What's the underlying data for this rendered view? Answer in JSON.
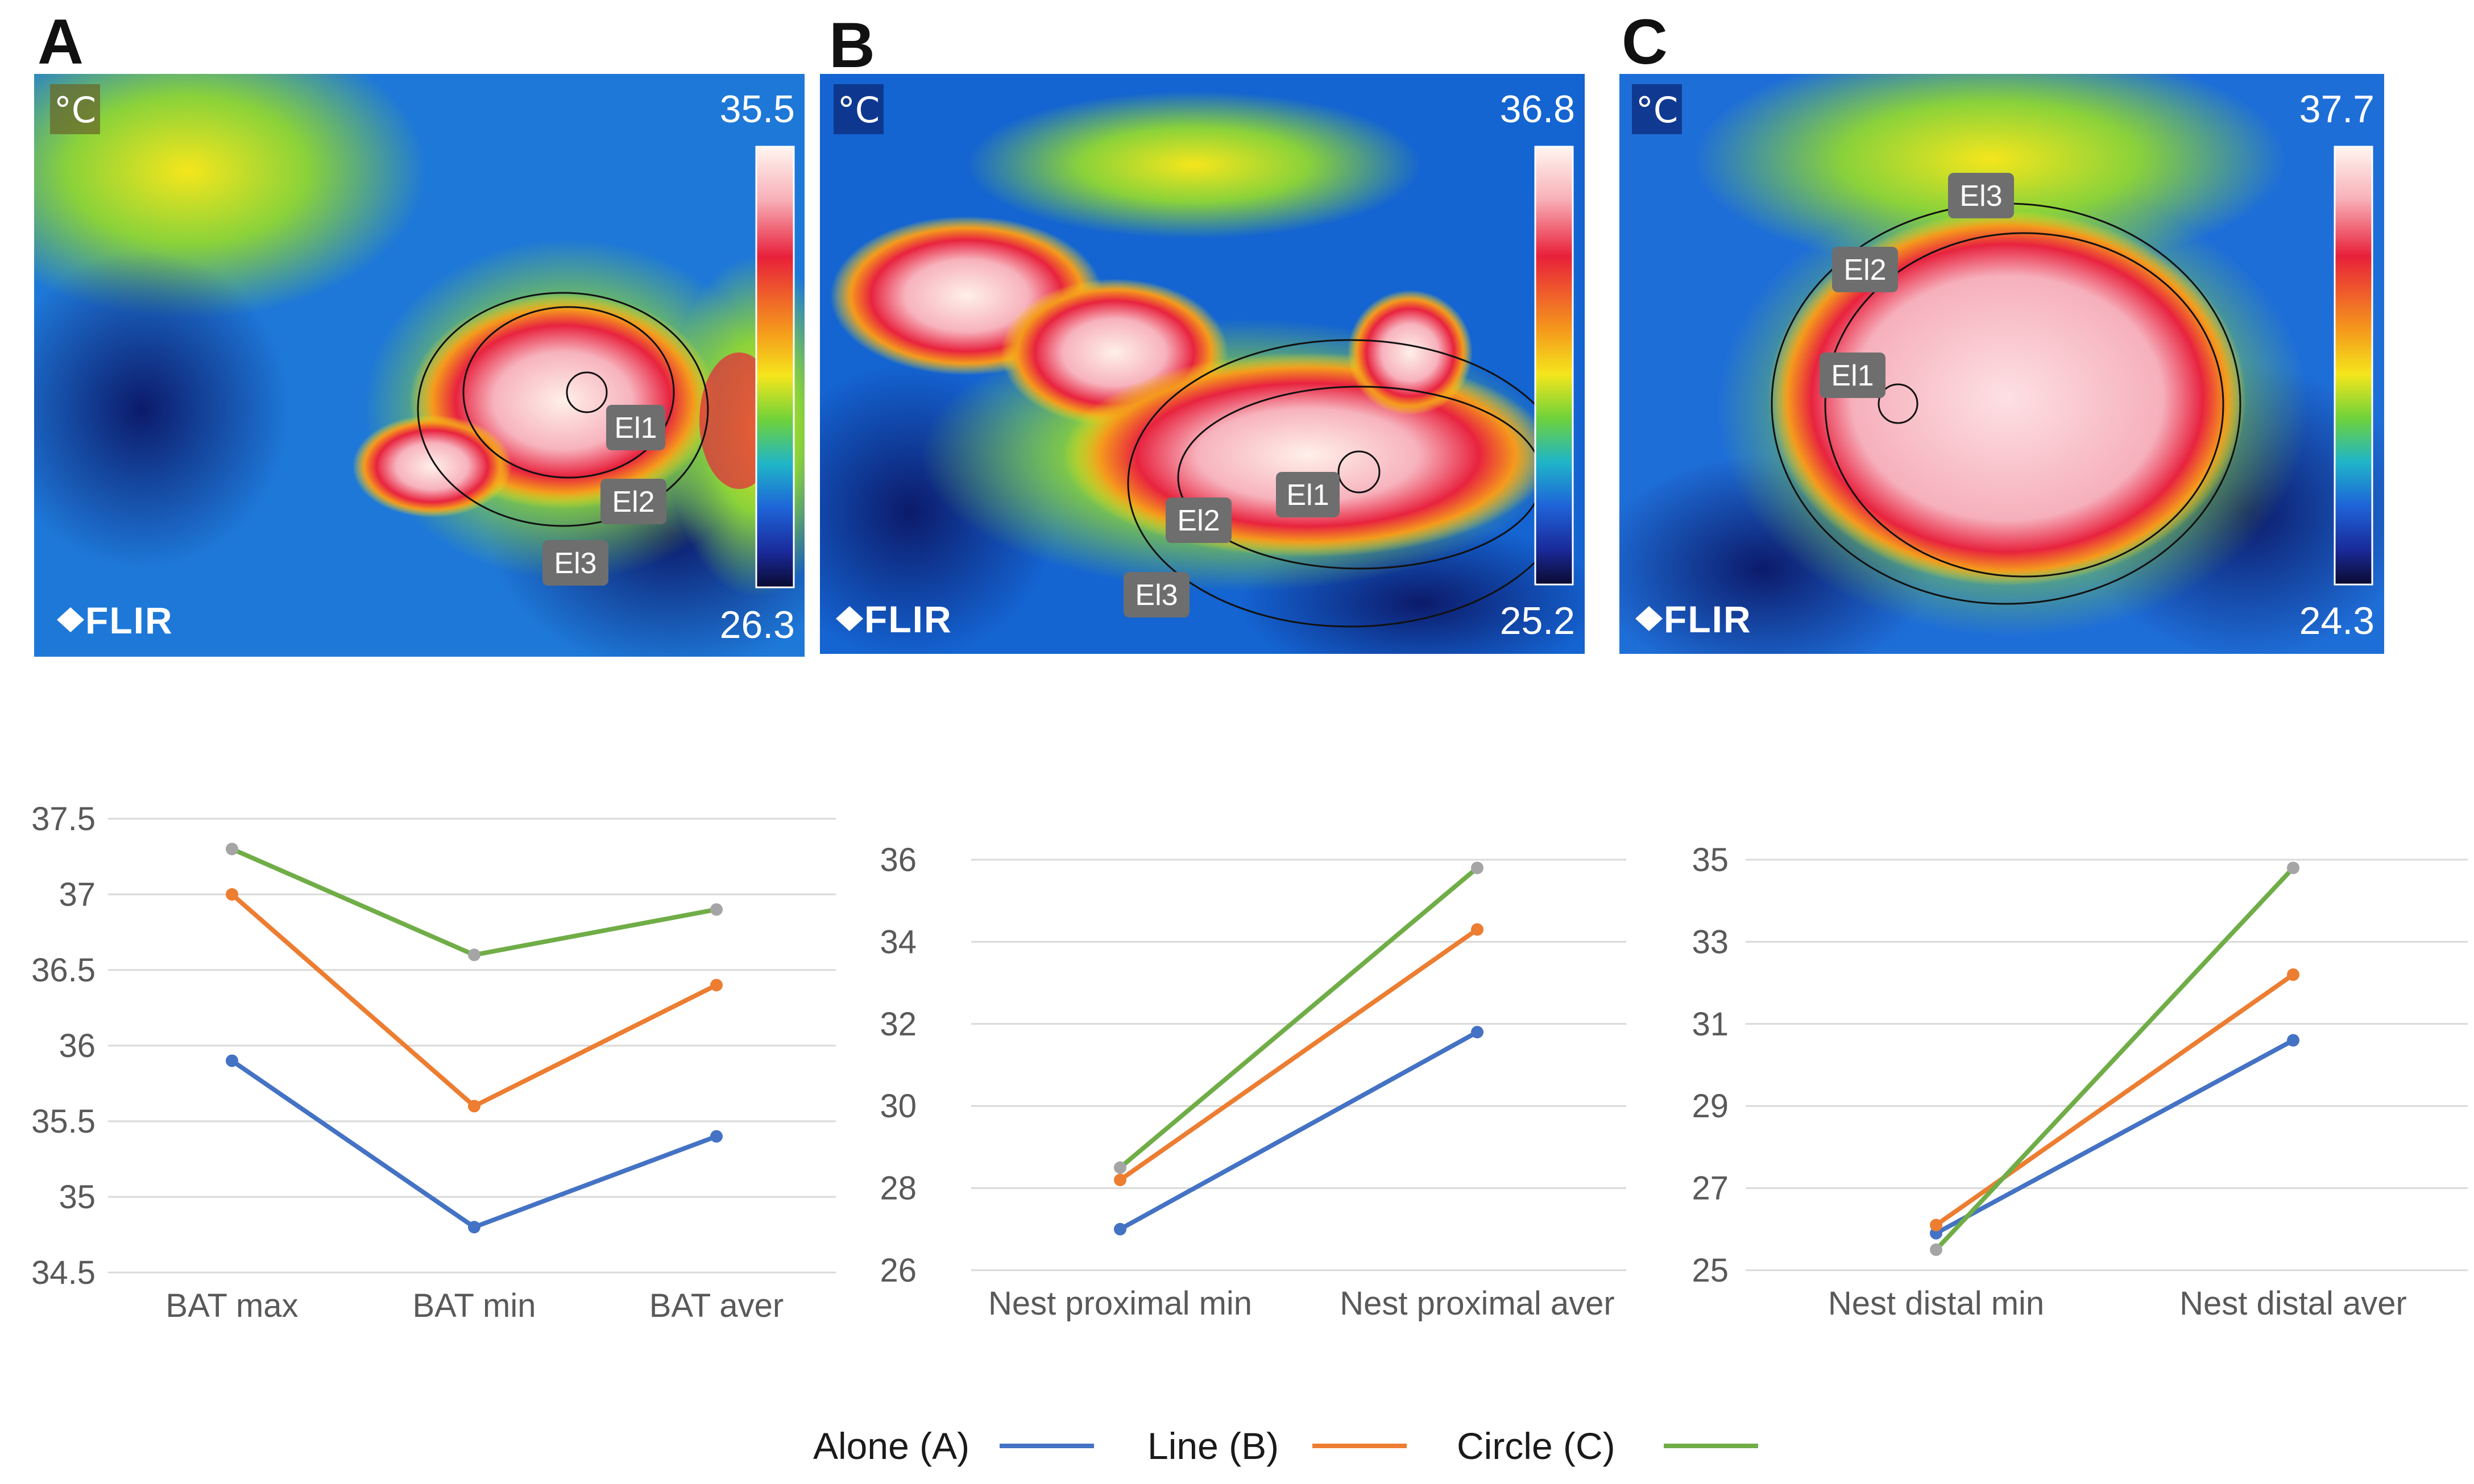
{
  "thermal_images": [
    {
      "letter": "A",
      "unit": "°C",
      "scale_max": "35.5",
      "scale_min": "26.3",
      "brand": "FLIR",
      "ellipse_labels": [
        "El1",
        "El2",
        "El3"
      ]
    },
    {
      "letter": "B",
      "unit": "°C",
      "scale_max": "36.8",
      "scale_min": "25.2",
      "brand": "FLIR",
      "ellipse_labels": [
        "El1",
        "El2",
        "El3"
      ]
    },
    {
      "letter": "C",
      "unit": "°C",
      "scale_max": "37.7",
      "scale_min": "24.3",
      "brand": "FLIR",
      "ellipse_labels": [
        "El1",
        "El2",
        "El3"
      ]
    }
  ],
  "colors": {
    "alone": "#4472C4",
    "line": "#ED7D31",
    "circle": "#70AD47",
    "marker": "#A5A5A5",
    "grid": "#D9D9D9"
  },
  "legend": [
    {
      "label": "Alone (A)",
      "color": "#4472C4"
    },
    {
      "label": "Line (B)",
      "color": "#ED7D31"
    },
    {
      "label": "Circle (C)",
      "color": "#70AD47"
    }
  ],
  "chart_data": [
    {
      "type": "line",
      "categories": [
        "BAT max",
        "BAT min",
        "BAT aver"
      ],
      "ylim": [
        34.5,
        37.5
      ],
      "yticks": [
        "34.5",
        "35",
        "35.5",
        "36",
        "36.5",
        "37",
        "37.5"
      ],
      "grid": true,
      "series": [
        {
          "name": "Alone (A)",
          "values": [
            35.9,
            34.8,
            35.4
          ]
        },
        {
          "name": "Line (B)",
          "values": [
            37.0,
            35.6,
            36.4
          ]
        },
        {
          "name": "Circle (C)",
          "values": [
            37.3,
            36.6,
            36.9
          ]
        }
      ]
    },
    {
      "type": "line",
      "categories": [
        "Nest proximal min",
        "Nest proximal aver"
      ],
      "ylim": [
        26,
        36
      ],
      "yticks": [
        "26",
        "28",
        "30",
        "32",
        "34",
        "36"
      ],
      "grid": true,
      "series": [
        {
          "name": "Alone (A)",
          "values": [
            27.0,
            31.8
          ]
        },
        {
          "name": "Line (B)",
          "values": [
            28.2,
            34.3
          ]
        },
        {
          "name": "Circle (C)",
          "values": [
            28.5,
            35.8
          ]
        }
      ]
    },
    {
      "type": "line",
      "categories": [
        "Nest distal min",
        "Nest distal aver"
      ],
      "ylim": [
        25,
        35
      ],
      "yticks": [
        "25",
        "27",
        "29",
        "31",
        "33",
        "35"
      ],
      "grid": true,
      "series": [
        {
          "name": "Alone (A)",
          "values": [
            25.9,
            30.6
          ]
        },
        {
          "name": "Line (B)",
          "values": [
            26.1,
            32.2
          ]
        },
        {
          "name": "Circle (C)",
          "values": [
            25.5,
            34.8
          ]
        }
      ]
    }
  ]
}
